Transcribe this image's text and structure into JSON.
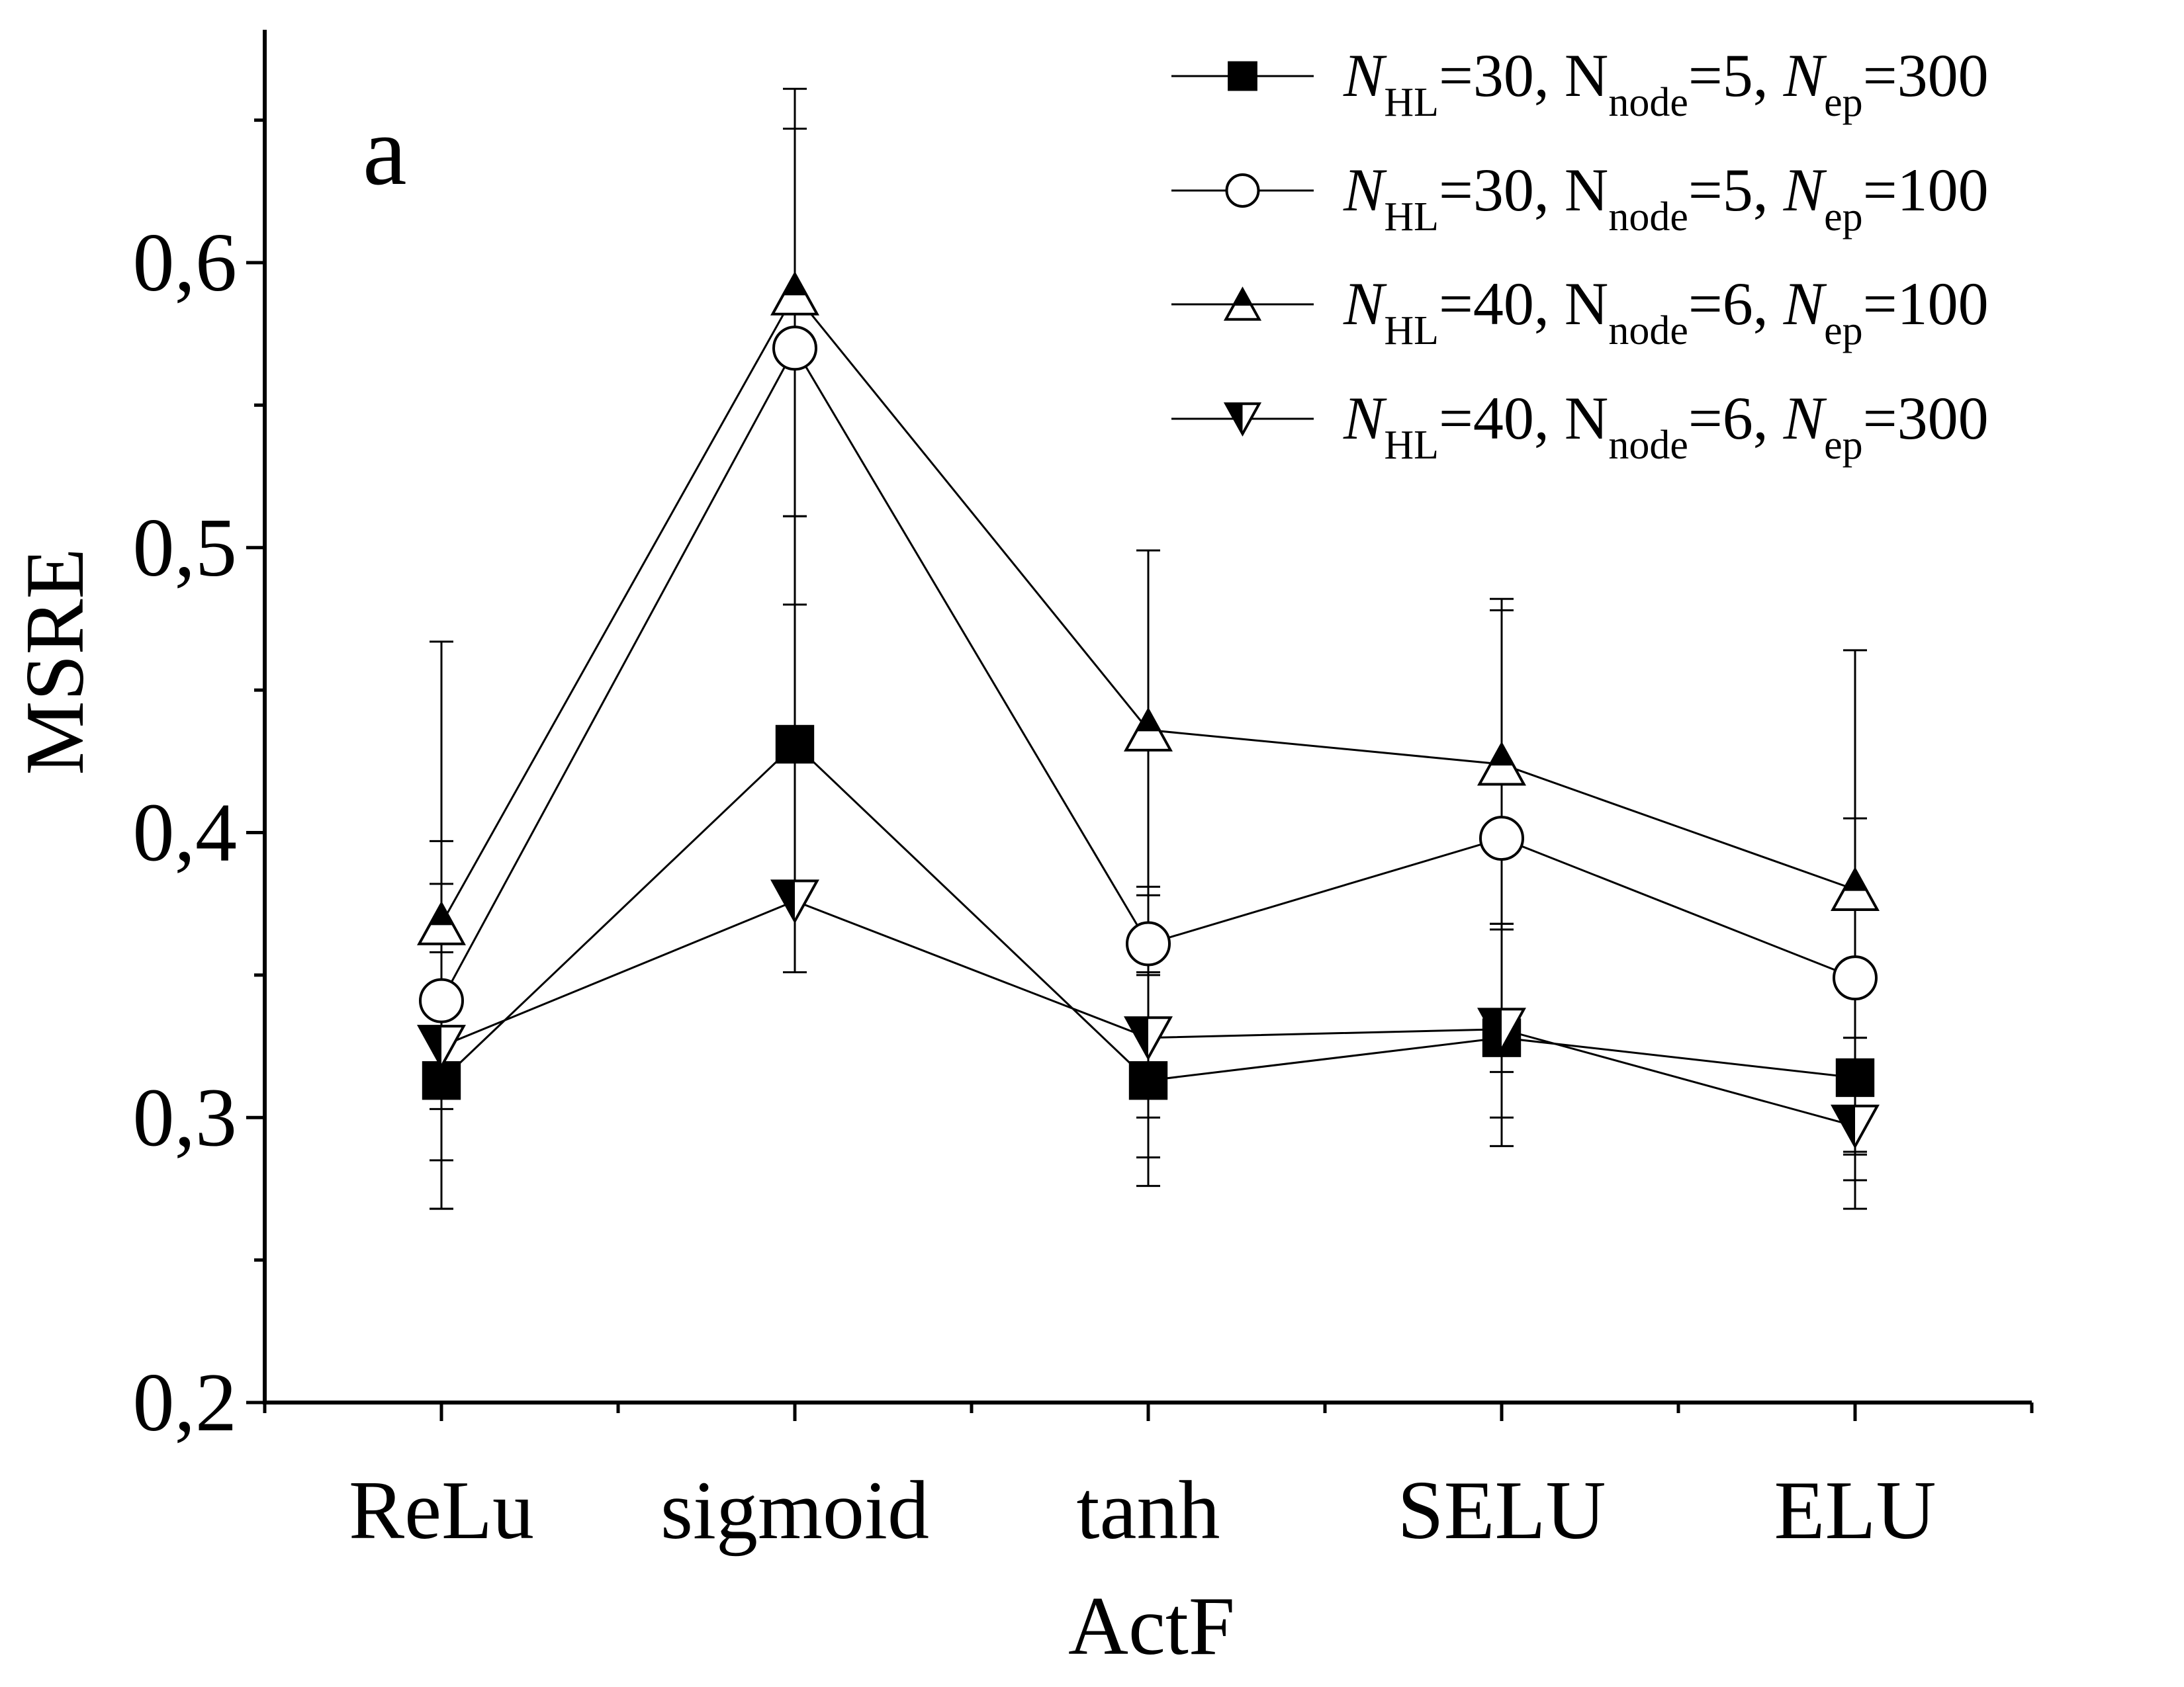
{
  "chart_data": {
    "type": "line",
    "panel_label": "a",
    "xlabel": "ActF",
    "ylabel": "MSRE",
    "categories": [
      "ReLu",
      "sigmoid",
      "tanh",
      "SELU",
      "ELU"
    ],
    "ylim": [
      0.2,
      0.66
    ],
    "yticks": [
      0.2,
      0.3,
      0.4,
      0.5,
      0.6
    ],
    "ytick_labels": [
      "0,2",
      "0,3",
      "0,4",
      "0,5",
      "0,6"
    ],
    "grid": false,
    "legend_position": "top-right",
    "series": [
      {
        "name": "N_HL=30, N_node=5, N_ep=300",
        "legend": {
          "a": "N",
          "a_sub": "HL",
          "b": "=30, N",
          "b_sub": "node",
          "c": "=5, ",
          "d": "N",
          "d_sub": "ep",
          "e": "=300"
        },
        "marker": "square-filled",
        "values": [
          0.313,
          0.431,
          0.313,
          0.328,
          0.314
        ],
        "err_low": [
          0.045,
          0.051,
          0.027,
          0.028,
          0.027
        ],
        "err_high": [
          0.045,
          0.049,
          0.038,
          0.04,
          0.014
        ]
      },
      {
        "name": "N_HL=30, N_node=5, N_ep=100",
        "legend": {
          "a": "N",
          "a_sub": "HL",
          "b": "=30, N",
          "b_sub": "node",
          "c": "=5, ",
          "d": "N",
          "d_sub": "ep",
          "e": "=100"
        },
        "marker": "circle-open",
        "values": [
          0.341,
          0.57,
          0.361,
          0.398,
          0.349
        ],
        "err_low": [
          0.056,
          0.059,
          0.061,
          0.082,
          0.061
        ],
        "err_high": [
          0.056,
          0.077,
          0.02,
          0.08,
          0.056
        ]
      },
      {
        "name": "N_HL=40, N_node=6, N_ep=100",
        "legend": {
          "a": "N",
          "a_sub": "HL",
          "b": "=40, N",
          "b_sub": "node",
          "c": "=6, ",
          "d": "N",
          "d_sub": "ep",
          "e": "=100"
        },
        "marker": "triangle-up-half",
        "values": [
          0.368,
          0.589,
          0.436,
          0.424,
          0.38
        ],
        "err_low": [
          0.065,
          0.078,
          0.086,
          0.058,
          0.102
        ],
        "err_high": [
          0.099,
          0.072,
          0.063,
          0.058,
          0.084
        ]
      },
      {
        "name": "N_HL=40, N_node=6, N_ep=300",
        "legend": {
          "a": "N",
          "a_sub": "HL",
          "b": "=40, N",
          "b_sub": "node",
          "c": "=6, ",
          "d": "N",
          "d_sub": "ep",
          "e": "=300"
        },
        "marker": "triangle-down-half",
        "values": [
          0.325,
          0.376,
          0.328,
          0.331,
          0.297
        ],
        "err_low": [
          0.057,
          0.025,
          0.052,
          0.041,
          0.029
        ],
        "err_high": [
          0.057,
          0.135,
          0.05,
          0.037,
          0.031
        ]
      }
    ]
  }
}
